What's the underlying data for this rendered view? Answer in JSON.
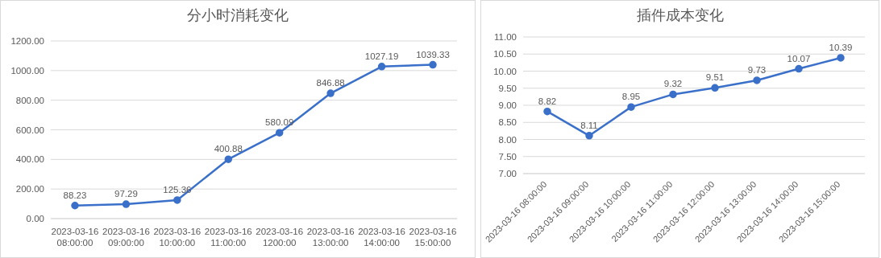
{
  "chart_data": [
    {
      "type": "line",
      "title": "分小时消耗变化",
      "categories": [
        "2023-03-16 08:00:00",
        "2023-03-16 09:00:00",
        "2023-03-16 10:00:00",
        "2023-03-16 11:00:00",
        "2023-03-16 1200:00",
        "2023-03-16 13:00:00",
        "2023-03-16 14:00:00",
        "2023-03-16 15:00:00"
      ],
      "series": [
        {
          "color": "#3a70c9",
          "values": [
            88.23,
            97.29,
            125.36,
            400.88,
            580.09,
            846.88,
            1027.19,
            1039.33
          ]
        }
      ],
      "ylim": [
        0,
        1200
      ],
      "yticks": [
        {
          "value": 0,
          "label": "0.00"
        },
        {
          "value": 200,
          "label": "200.00"
        },
        {
          "value": 400,
          "label": "400.00"
        },
        {
          "value": 600,
          "label": "600.00"
        },
        {
          "value": 800,
          "label": "800.00"
        },
        {
          "value": 1000,
          "label": "1000.00"
        },
        {
          "value": 1200,
          "label": "1200.00"
        }
      ],
      "grid": "y",
      "marker": "circle",
      "data_labels": true,
      "legend": false
    },
    {
      "type": "line",
      "title": "插件成本变化",
      "categories": [
        "2023-03-16 08:00:00",
        "2023-03-16 09:00:00",
        "2023-03-16 10:00:00",
        "2023-03-16 11:00:00",
        "2023-03-16 12:00:00",
        "2023-03-16 13:00:00",
        "2023-03-16 14:00:00",
        "2023-03-16 15:00:00"
      ],
      "series": [
        {
          "color": "#3a70c9",
          "values": [
            8.82,
            8.11,
            8.95,
            9.32,
            9.51,
            9.73,
            10.07,
            10.39
          ]
        }
      ],
      "ylim": [
        7,
        11
      ],
      "yticks": [
        {
          "value": 7,
          "label": "7.00"
        },
        {
          "value": 7.5,
          "label": "7.50"
        },
        {
          "value": 8,
          "label": "8.00"
        },
        {
          "value": 8.5,
          "label": "8.50"
        },
        {
          "value": 9,
          "label": "9.00"
        },
        {
          "value": 9.5,
          "label": "9.50"
        },
        {
          "value": 10,
          "label": "10.00"
        },
        {
          "value": 10.5,
          "label": "10.50"
        },
        {
          "value": 11,
          "label": "11.00"
        }
      ],
      "grid": "y",
      "marker": "circle",
      "data_labels": true,
      "legend": false
    }
  ]
}
